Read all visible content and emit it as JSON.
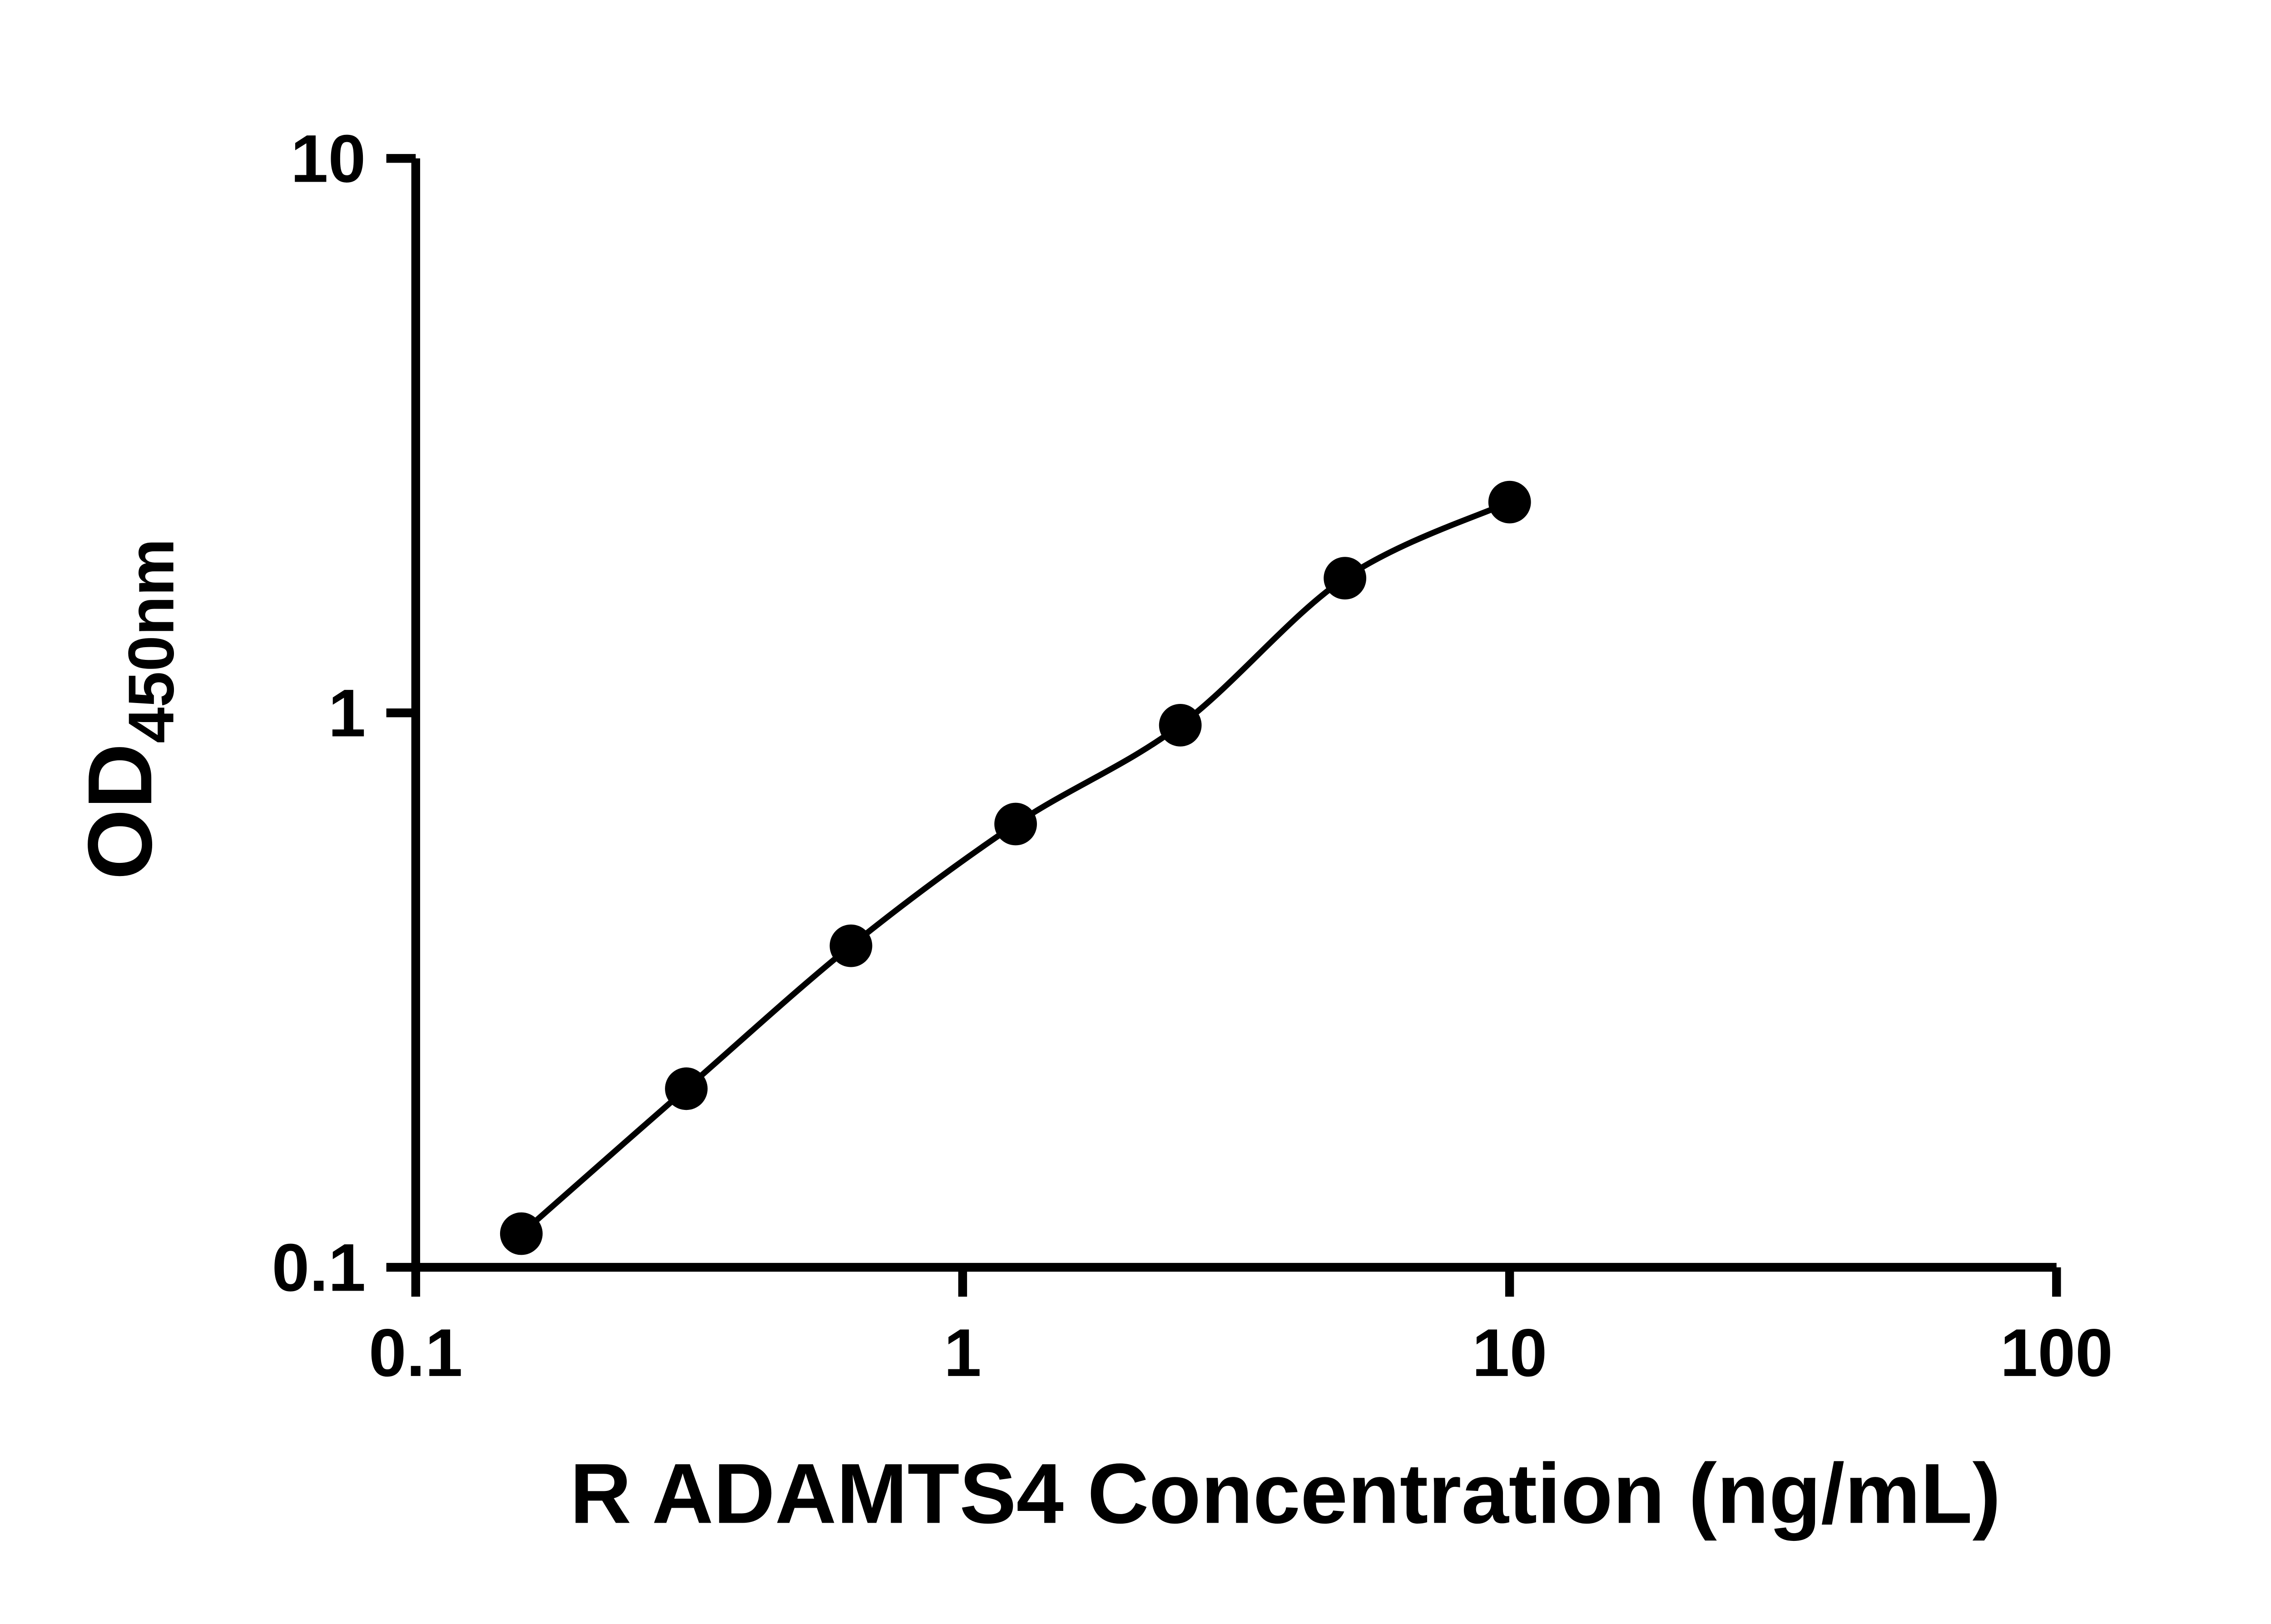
{
  "chart_data": {
    "type": "scatter",
    "title": "",
    "xlabel": "R ADAMTS4 Concentration (ng/mL)",
    "ylabel_main": "OD",
    "ylabel_sub": "450nm",
    "x_scale": "log",
    "y_scale": "log",
    "xlim": [
      0.1,
      100
    ],
    "ylim": [
      0.1,
      10
    ],
    "x_ticks": [
      0.1,
      1,
      10,
      100
    ],
    "x_tick_labels": [
      "0.1",
      "1",
      "10",
      "100"
    ],
    "y_ticks": [
      0.1,
      1,
      10
    ],
    "y_tick_labels": [
      "0.1",
      "1",
      "10"
    ],
    "grid": false,
    "legend_position": "none",
    "marker_color": "#000000",
    "line_color": "#000000",
    "background_color": "#ffffff",
    "points": [
      {
        "x": 0.156,
        "y": 0.115
      },
      {
        "x": 0.3125,
        "y": 0.21
      },
      {
        "x": 0.625,
        "y": 0.38
      },
      {
        "x": 1.25,
        "y": 0.63
      },
      {
        "x": 2.5,
        "y": 0.95
      },
      {
        "x": 5,
        "y": 1.75
      },
      {
        "x": 10,
        "y": 2.4
      }
    ]
  }
}
